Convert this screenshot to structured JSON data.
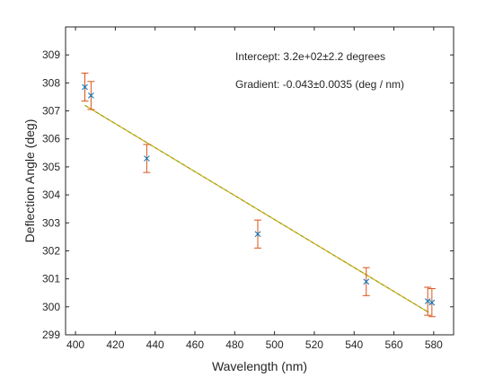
{
  "chart_data": {
    "type": "scatter",
    "title": "",
    "xlabel": "Wavelength (nm)",
    "ylabel": "Deflection Angle (deg)",
    "xlim": [
      395,
      590
    ],
    "ylim": [
      299,
      310
    ],
    "xticks": [
      400,
      420,
      440,
      460,
      480,
      500,
      520,
      540,
      560,
      580
    ],
    "yticks": [
      299,
      300,
      301,
      302,
      303,
      304,
      305,
      306,
      307,
      308,
      309
    ],
    "grid": false,
    "marker": "x",
    "points": [
      {
        "x": 404.7,
        "y": 307.85,
        "err": 0.5
      },
      {
        "x": 407.8,
        "y": 307.55,
        "err": 0.5
      },
      {
        "x": 435.8,
        "y": 305.3,
        "err": 0.5
      },
      {
        "x": 491.6,
        "y": 302.6,
        "err": 0.5
      },
      {
        "x": 546.1,
        "y": 300.9,
        "err": 0.5
      },
      {
        "x": 577.0,
        "y": 300.2,
        "err": 0.5
      },
      {
        "x": 579.1,
        "y": 300.15,
        "err": 0.5
      }
    ],
    "fit_line": {
      "x": [
        404.7,
        577.5
      ],
      "y": [
        307.2,
        299.8
      ]
    },
    "annotations": [
      {
        "text": "Intercept: 3.2e+02±2.2 degrees"
      },
      {
        "text": "Gradient: -0.043±0.0035 (deg / nm)"
      }
    ],
    "colors": {
      "marker": "#0072bd",
      "errorbar": "#d95319",
      "fit_main": "#edb120",
      "fit_secondary": "#77ac30",
      "axis": "#262626"
    }
  }
}
